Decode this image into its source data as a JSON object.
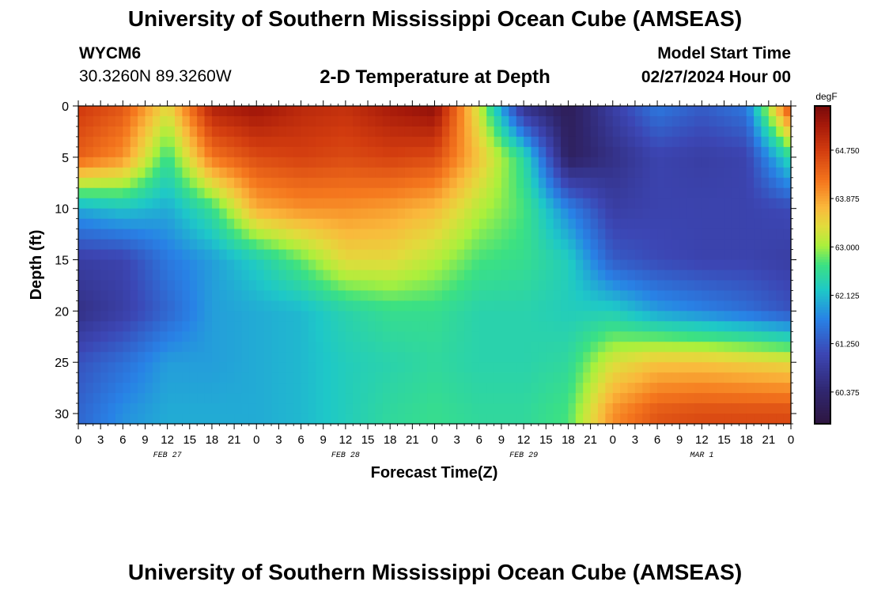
{
  "header": {
    "title": "University of Southern Mississippi Ocean Cube (AMSEAS)",
    "station_id": "WYCM6",
    "station_coords": "30.3260N  89.3260W",
    "subtitle": "2-D Temperature at Depth",
    "model_start_label": "Model Start Time",
    "model_start_value": "02/27/2024 Hour 00"
  },
  "footer": {
    "title": "University of Southern Mississippi Ocean Cube (AMSEAS)"
  },
  "chart_data": {
    "type": "heatmap",
    "title": "2-D Temperature at Depth",
    "xlabel": "Forecast Time(Z)",
    "ylabel": "Depth (ft)",
    "xlim": [
      0,
      96
    ],
    "ylim": [
      0,
      31
    ],
    "x_tick_labels": [
      "0",
      "3",
      "6",
      "9",
      "12",
      "15",
      "18",
      "21",
      "0",
      "3",
      "6",
      "9",
      "12",
      "15",
      "18",
      "21",
      "0",
      "3",
      "6",
      "9",
      "12",
      "15",
      "18",
      "21",
      "0",
      "3",
      "6",
      "9",
      "12",
      "15",
      "18",
      "21",
      "0"
    ],
    "day_labels": [
      {
        "label": "FEB 27",
        "hour": 12
      },
      {
        "label": "FEB 28",
        "hour": 36
      },
      {
        "label": "FEB 29",
        "hour": 60
      },
      {
        "label": "MAR 1",
        "hour": 84
      }
    ],
    "y_ticks": [
      0,
      5,
      10,
      15,
      20,
      25,
      30
    ],
    "colorbar": {
      "unit": "degF",
      "min": 59.8,
      "max": 65.55,
      "tick_values": [
        64.75,
        63.875,
        63.0,
        62.125,
        61.25,
        60.375
      ],
      "tick_labels": [
        "64.750",
        "63.875",
        "63.000",
        "62.125",
        "61.250",
        "60.375"
      ]
    },
    "depths": [
      0,
      5,
      10,
      15,
      20,
      25,
      30
    ],
    "hours": [
      0,
      6,
      12,
      18,
      24,
      30,
      36,
      42,
      48,
      54,
      60,
      66,
      72,
      78,
      84,
      90,
      96
    ],
    "values": [
      [
        64.8,
        64.5,
        63.4,
        65.1,
        65.3,
        65.0,
        64.9,
        65.2,
        65.4,
        63.2,
        60.6,
        60.1,
        60.9,
        61.6,
        61.3,
        61.6,
        64.7
      ],
      [
        64.4,
        64.0,
        62.6,
        64.2,
        64.6,
        64.7,
        64.6,
        64.7,
        64.6,
        63.6,
        62.5,
        60.2,
        60.6,
        61.0,
        60.9,
        61.0,
        62.5
      ],
      [
        62.0,
        62.2,
        62.0,
        62.6,
        63.8,
        64.0,
        64.0,
        63.9,
        63.7,
        63.1,
        62.7,
        61.7,
        60.9,
        61.0,
        61.0,
        61.0,
        61.1
      ],
      [
        60.9,
        61.0,
        61.6,
        61.9,
        62.3,
        62.8,
        63.4,
        63.4,
        63.1,
        62.7,
        62.6,
        62.3,
        61.3,
        61.1,
        61.0,
        61.0,
        60.9
      ],
      [
        60.6,
        60.9,
        61.4,
        61.9,
        62.0,
        62.1,
        62.4,
        62.6,
        62.6,
        62.4,
        62.4,
        62.3,
        62.3,
        61.9,
        61.7,
        61.5,
        61.2
      ],
      [
        61.2,
        61.5,
        61.9,
        61.9,
        62.0,
        62.1,
        62.3,
        62.4,
        62.5,
        62.4,
        62.4,
        62.5,
        63.3,
        63.6,
        63.6,
        63.5,
        63.4
      ],
      [
        61.4,
        61.8,
        62.0,
        62.0,
        62.0,
        62.1,
        62.3,
        62.5,
        62.6,
        62.5,
        62.5,
        62.7,
        64.0,
        64.5,
        64.6,
        64.6,
        64.6
      ]
    ]
  }
}
